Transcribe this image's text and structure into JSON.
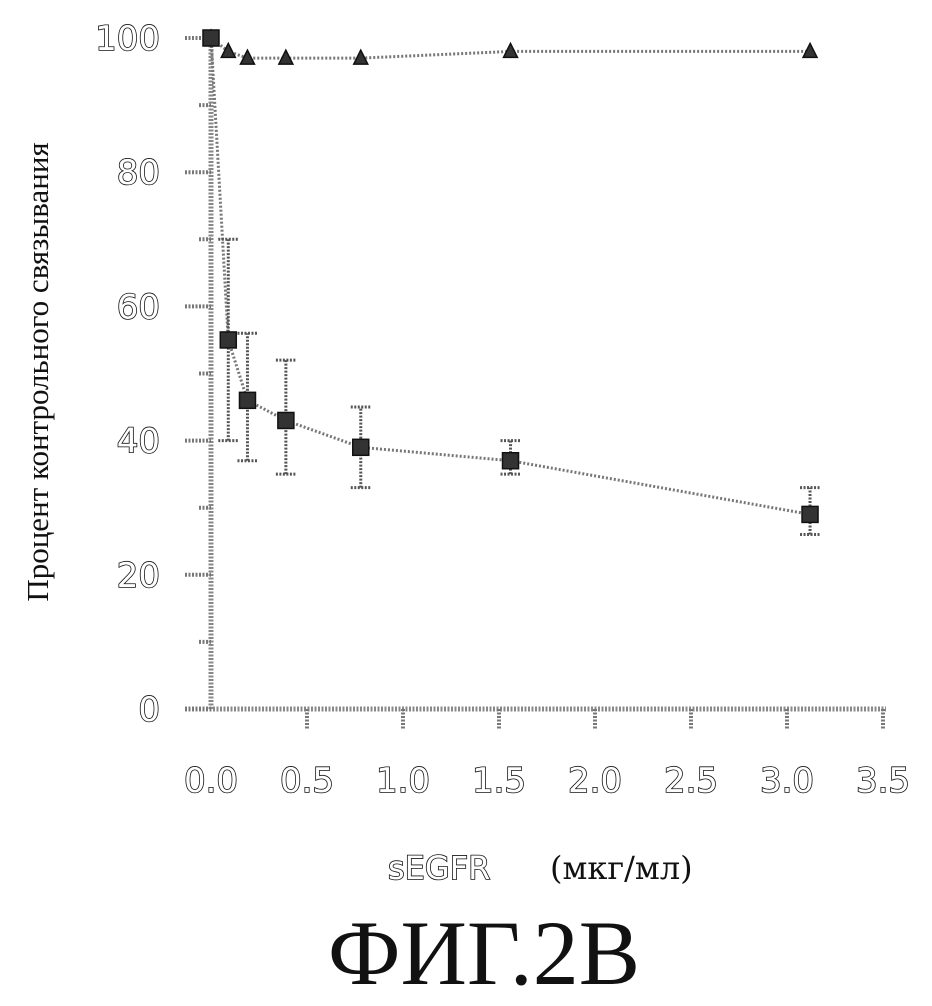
{
  "figure": {
    "caption": "ФИГ.2В"
  },
  "chart_data": {
    "type": "scatter",
    "xlabel_main": "sEGFR",
    "xlabel_unit": "(мкг/мл)",
    "ylabel": "Процент контрольного связывания",
    "xlim": [
      0,
      3.5
    ],
    "ylim": [
      0,
      100
    ],
    "x_ticks": [
      "0.0",
      "0.5",
      "1.0",
      "1.5",
      "2.0",
      "2.5",
      "3.0",
      "3.5"
    ],
    "y_ticks": [
      "0",
      "20",
      "40",
      "60",
      "80",
      "100"
    ],
    "grid": false,
    "series": [
      {
        "marker": "triangle",
        "x": [
          0.0,
          0.09,
          0.19,
          0.39,
          0.78,
          1.56,
          3.12
        ],
        "y": [
          100,
          98,
          97,
          97,
          97,
          98,
          98
        ]
      },
      {
        "marker": "square",
        "x": [
          0.0,
          0.09,
          0.19,
          0.39,
          0.78,
          1.56,
          3.12
        ],
        "y": [
          100,
          55,
          46,
          43,
          39,
          37,
          29
        ],
        "error_low": [
          100,
          40,
          37,
          35,
          33,
          35,
          26
        ],
        "error_high": [
          100,
          70,
          56,
          52,
          45,
          40,
          33
        ]
      }
    ]
  }
}
